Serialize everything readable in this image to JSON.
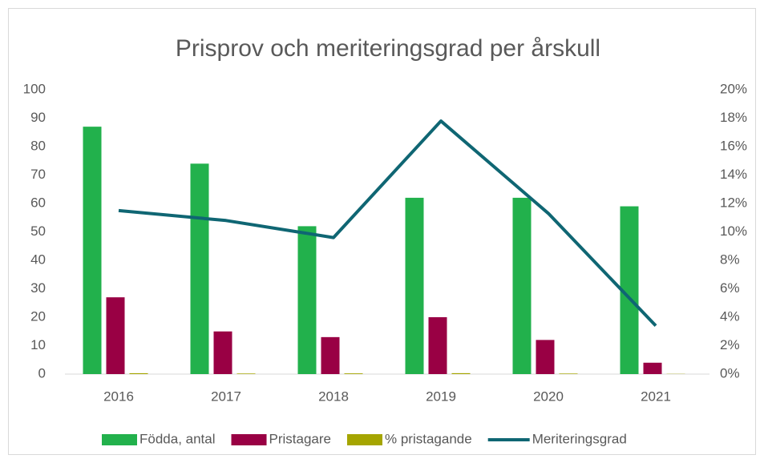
{
  "chart_data": {
    "type": "bar",
    "title": "Prisprov och meriteringsgrad per årskull",
    "categories": [
      "2016",
      "2017",
      "2018",
      "2019",
      "2020",
      "2021"
    ],
    "series": [
      {
        "name": "Födda, antal",
        "color": "#22b14c",
        "type": "bar",
        "values": [
          87,
          74,
          52,
          62,
          62,
          59
        ]
      },
      {
        "name": "Pristagare",
        "color": "#990044",
        "type": "bar",
        "values": [
          27,
          15,
          13,
          20,
          12,
          4
        ]
      },
      {
        "name": "% pristagande",
        "color": "#a5a500",
        "type": "bar",
        "values": [
          0.31,
          0.2,
          0.25,
          0.32,
          0.19,
          0.07
        ]
      },
      {
        "name": "Meriteringsgrad",
        "color": "#0f6673",
        "type": "line",
        "axis": "y2",
        "values": [
          11.5,
          10.8,
          9.6,
          17.8,
          11.3,
          3.4
        ]
      }
    ],
    "ylim": [
      0,
      100
    ],
    "yticks": [
      0,
      10,
      20,
      30,
      40,
      50,
      60,
      70,
      80,
      90,
      100
    ],
    "y2lim": [
      0,
      20
    ],
    "y2ticks": [
      {
        "value": 0,
        "label": "0%"
      },
      {
        "value": 2,
        "label": "2%"
      },
      {
        "value": 4,
        "label": "4%"
      },
      {
        "value": 6,
        "label": "6%"
      },
      {
        "value": 8,
        "label": "8%"
      },
      {
        "value": 10,
        "label": "10%"
      },
      {
        "value": 12,
        "label": "12%"
      },
      {
        "value": 14,
        "label": "14%"
      },
      {
        "value": 16,
        "label": "16%"
      },
      {
        "value": 18,
        "label": "18%"
      },
      {
        "value": 20,
        "label": "20%"
      }
    ],
    "legend": "bottom"
  }
}
